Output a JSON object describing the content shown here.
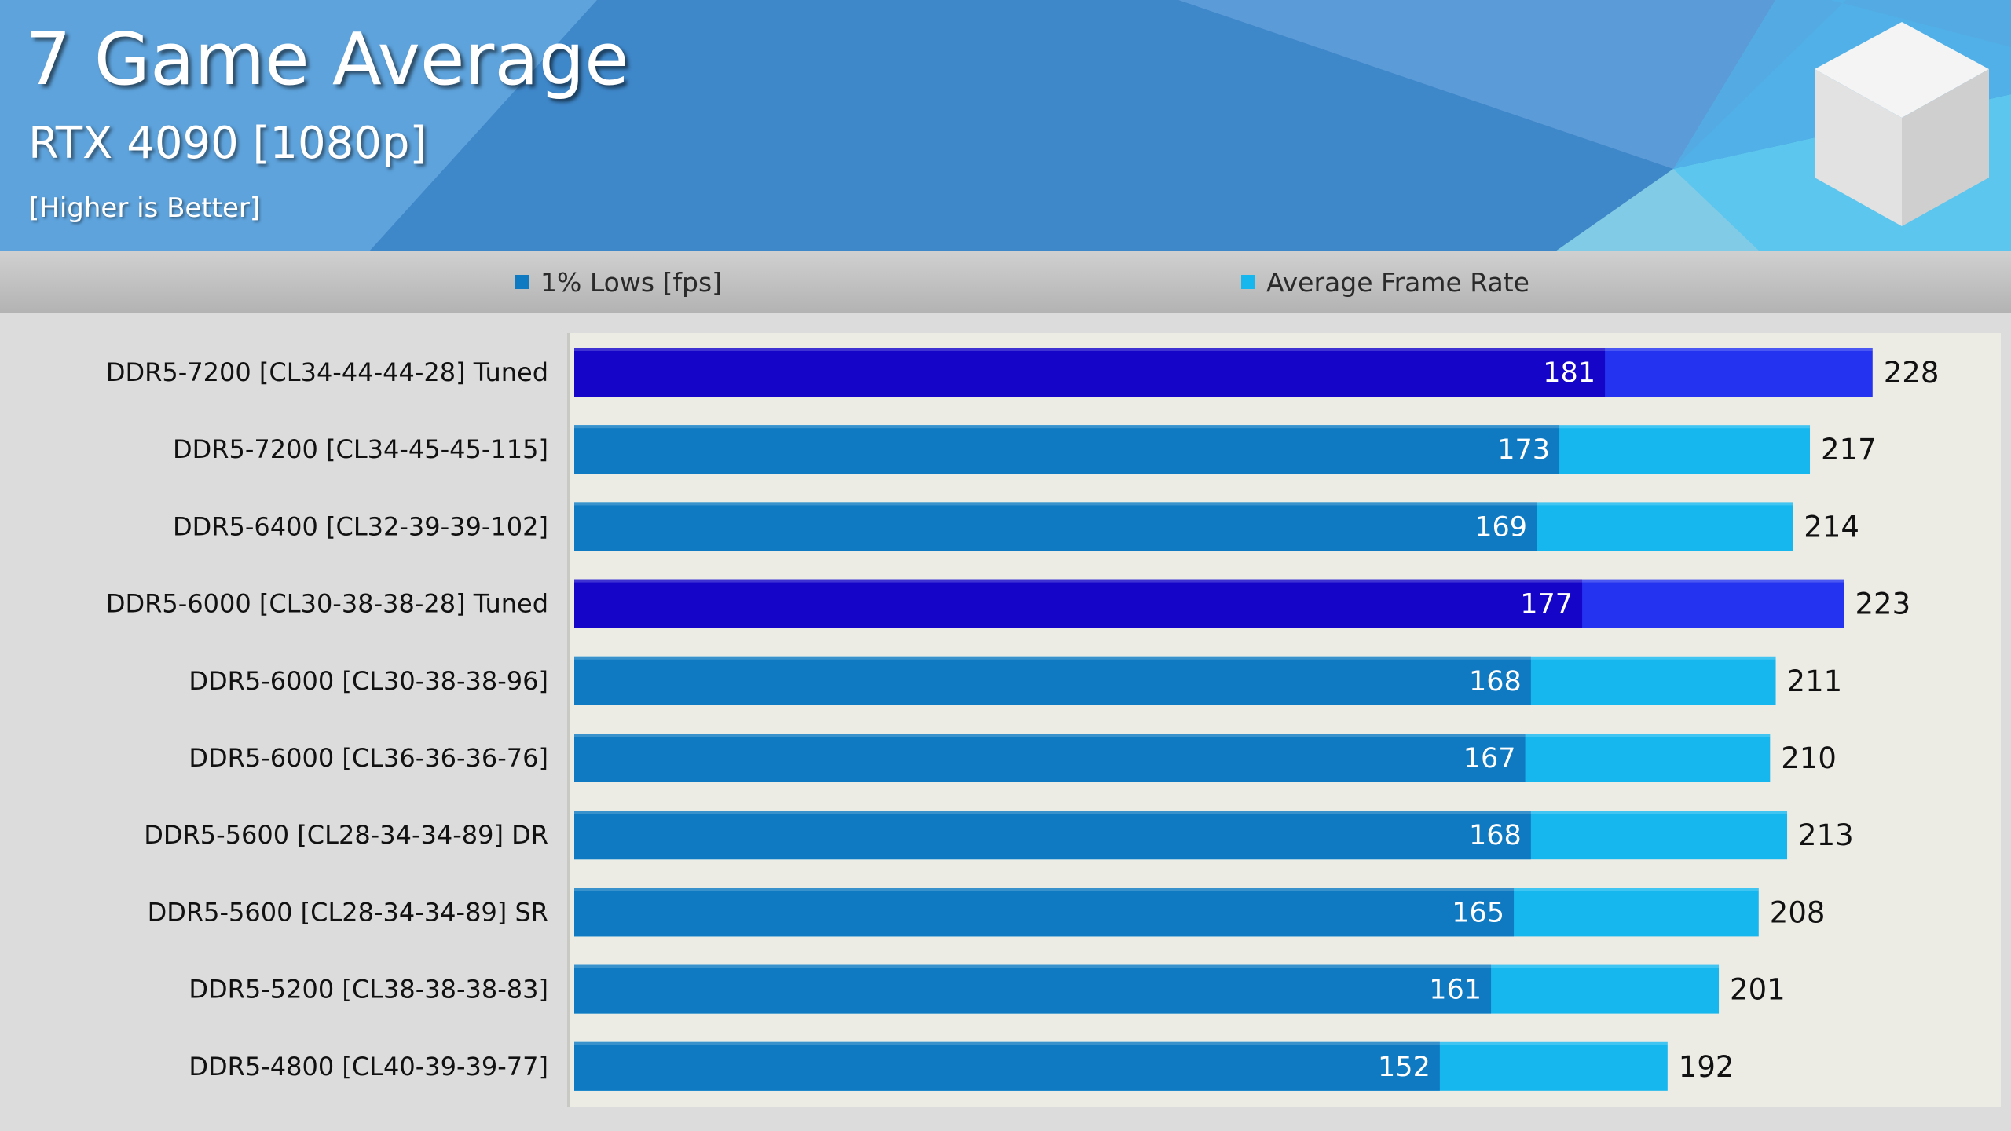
{
  "header": {
    "title": "7 Game Average",
    "subtitle": "RTX 4090 [1080p]",
    "note": "[Higher is Better]"
  },
  "legend": {
    "lows_label": "1% Lows [fps]",
    "avg_label": "Average Frame Rate"
  },
  "colors": {
    "lows_normal": "#0f7ac2",
    "avg_normal": "#16b7ef",
    "lows_tuned": "#1405c9",
    "avg_tuned": "#2433ef",
    "plot_bg": "#ecebe4"
  },
  "chart_data": {
    "type": "bar",
    "orientation": "horizontal",
    "title": "7 Game Average",
    "subtitle": "RTX 4090 [1080p]",
    "categories": [
      "DDR5-7200 [CL34-44-44-28] Tuned",
      "DDR5-7200 [CL34-45-45-115]",
      "DDR5-6400 [CL32-39-39-102]",
      "DDR5-6000 [CL30-38-38-28] Tuned",
      "DDR5-6000 [CL30-38-38-96]",
      "DDR5-6000 [CL36-36-36-76]",
      "DDR5-5600 [CL28-34-34-89] DR",
      "DDR5-5600 [CL28-34-34-89] SR",
      "DDR5-5200 [CL38-38-38-83]",
      "DDR5-4800 [CL40-39-39-77]"
    ],
    "series": [
      {
        "name": "1% Lows [fps]",
        "values": [
          181,
          173,
          169,
          177,
          168,
          167,
          168,
          165,
          161,
          152
        ]
      },
      {
        "name": "Average Frame Rate",
        "values": [
          228,
          217,
          214,
          223,
          211,
          210,
          213,
          208,
          201,
          192
        ]
      }
    ],
    "highlighted": [
      true,
      false,
      false,
      true,
      false,
      false,
      false,
      false,
      false,
      false
    ],
    "xlim": [
      0,
      240
    ],
    "legend_position": "top",
    "grid": false
  }
}
